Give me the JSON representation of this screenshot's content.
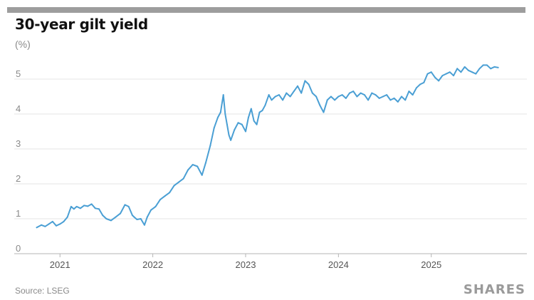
{
  "header": {
    "title": "30-year gilt yield",
    "unit": "(%)"
  },
  "footer": {
    "source": "Source: LSEG",
    "brand": "SHARES"
  },
  "colors": {
    "line": "#4a9fd4",
    "grid": "#e4e4e4",
    "axis": "#b5b5b5",
    "tick_text": "#8a8a8a",
    "bar": "#9d9d9d"
  },
  "chart_data": {
    "type": "line",
    "title": "30-year gilt yield",
    "ylabel": "(%)",
    "xlabel": "",
    "ylim": [
      0,
      5.7
    ],
    "xlim": [
      2020.63,
      2026.03
    ],
    "y_ticks": [
      0,
      1,
      2,
      3,
      4,
      5
    ],
    "x_ticks": [
      "2021",
      "2022",
      "2023",
      "2024",
      "2025"
    ],
    "grid": true,
    "series": [
      {
        "values_x": [
          2020.75,
          2020.8,
          2020.84,
          2020.88,
          2020.92,
          2020.96,
          2021.0,
          2021.04,
          2021.08,
          2021.12,
          2021.15,
          2021.18,
          2021.22,
          2021.26,
          2021.3,
          2021.34,
          2021.38,
          2021.42,
          2021.46,
          2021.5,
          2021.55,
          2021.6,
          2021.65,
          2021.7,
          2021.74,
          2021.78,
          2021.8,
          2021.83,
          2021.87,
          2021.91,
          2021.94,
          2021.98,
          2022.03,
          2022.08,
          2022.13,
          2022.18,
          2022.23,
          2022.28,
          2022.33,
          2022.38,
          2022.43,
          2022.48,
          2022.53,
          2022.57,
          2022.62,
          2022.66,
          2022.7,
          2022.73,
          2022.76,
          2022.78,
          2022.8,
          2022.82,
          2022.84,
          2022.88,
          2022.92,
          2022.96,
          2023.0,
          2023.03,
          2023.06,
          2023.09,
          2023.12,
          2023.15,
          2023.18,
          2023.21,
          2023.25,
          2023.28,
          2023.32,
          2023.36,
          2023.4,
          2023.44,
          2023.48,
          2023.52,
          2023.56,
          2023.6,
          2023.64,
          2023.68,
          2023.72,
          2023.76,
          2023.8,
          2023.84,
          2023.88,
          2023.92,
          2023.96,
          2024.0,
          2024.04,
          2024.08,
          2024.12,
          2024.16,
          2024.2,
          2024.24,
          2024.28,
          2024.32,
          2024.36,
          2024.4,
          2024.44,
          2024.48,
          2024.52,
          2024.56,
          2024.6,
          2024.64,
          2024.68,
          2024.72,
          2024.76,
          2024.8,
          2024.84,
          2024.88,
          2024.92,
          2024.96,
          2025.0,
          2025.04,
          2025.08,
          2025.12,
          2025.16,
          2025.2,
          2025.24,
          2025.28,
          2025.32,
          2025.36,
          2025.4,
          2025.44,
          2025.48,
          2025.52,
          2025.56,
          2025.6,
          2025.64,
          2025.68,
          2025.72
        ],
        "values_y": [
          0.75,
          0.82,
          0.78,
          0.85,
          0.92,
          0.8,
          0.85,
          0.92,
          1.05,
          1.35,
          1.28,
          1.35,
          1.3,
          1.38,
          1.36,
          1.42,
          1.3,
          1.28,
          1.1,
          1.0,
          0.95,
          1.05,
          1.15,
          1.4,
          1.35,
          1.1,
          1.05,
          0.98,
          1.0,
          0.82,
          1.05,
          1.25,
          1.35,
          1.55,
          1.65,
          1.75,
          1.95,
          2.05,
          2.15,
          2.4,
          2.55,
          2.5,
          2.25,
          2.6,
          3.1,
          3.6,
          3.9,
          4.05,
          4.55,
          4.0,
          3.7,
          3.4,
          3.25,
          3.55,
          3.75,
          3.7,
          3.5,
          3.9,
          4.15,
          3.8,
          3.7,
          4.05,
          4.1,
          4.25,
          4.55,
          4.4,
          4.5,
          4.55,
          4.4,
          4.6,
          4.5,
          4.65,
          4.8,
          4.6,
          4.95,
          4.85,
          4.6,
          4.5,
          4.25,
          4.05,
          4.4,
          4.5,
          4.4,
          4.5,
          4.55,
          4.45,
          4.6,
          4.65,
          4.5,
          4.6,
          4.55,
          4.4,
          4.6,
          4.55,
          4.45,
          4.5,
          4.55,
          4.4,
          4.45,
          4.35,
          4.5,
          4.4,
          4.65,
          4.55,
          4.75,
          4.85,
          4.9,
          5.15,
          5.2,
          5.05,
          4.95,
          5.1,
          5.15,
          5.2,
          5.1,
          5.3,
          5.2,
          5.35,
          5.25,
          5.2,
          5.15,
          5.3,
          5.4,
          5.4,
          5.3,
          5.35,
          5.33
        ]
      }
    ]
  }
}
